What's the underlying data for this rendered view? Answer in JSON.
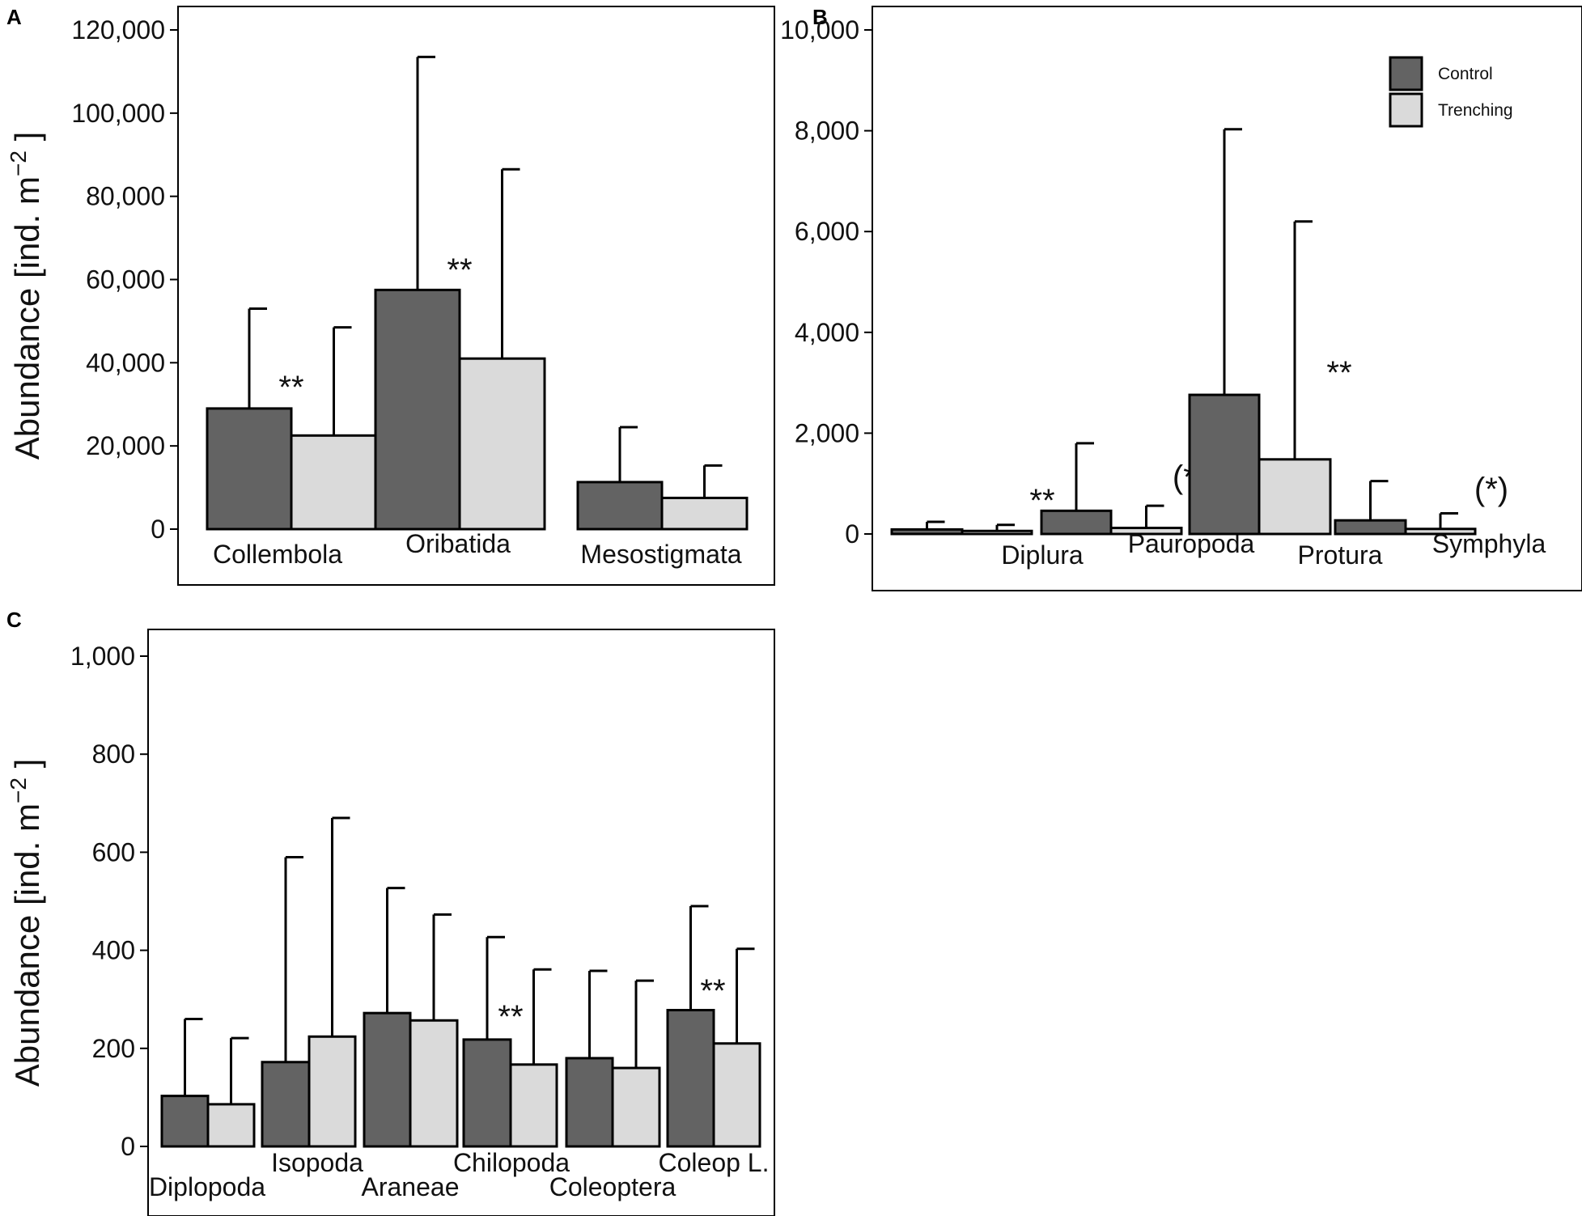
{
  "colors": {
    "control": "#636363",
    "trenching": "#dadada",
    "stroke": "#000000"
  },
  "legend": {
    "items": [
      "Control",
      "Trenching"
    ],
    "position": "top-right of panel B"
  },
  "chart_data": [
    {
      "panel": "A",
      "type": "bar",
      "ylabel": "Abundance [ind. m",
      "ylabel_unit_exponent": "−2",
      "ylabel_close": " ]",
      "ylim": [
        -15000,
        125000
      ],
      "yticks": [
        0,
        20000,
        40000,
        60000,
        80000,
        100000,
        120000
      ],
      "ytick_labels": [
        "0",
        "20,000",
        "40,000",
        "60,000",
        "80,000",
        "100,000",
        "120,000"
      ],
      "categories": [
        "Collembola",
        "Oribatida",
        "Mesostigmata"
      ],
      "series": [
        {
          "name": "Control",
          "values": [
            29000,
            57500,
            11300
          ],
          "err_upper": [
            53000,
            113500,
            24500
          ]
        },
        {
          "name": "Trenching",
          "values": [
            22500,
            41000,
            7500
          ],
          "err_upper": [
            48500,
            86500,
            15300
          ]
        }
      ],
      "significance": [
        "**",
        "**",
        ""
      ]
    },
    {
      "panel": "B",
      "type": "bar",
      "ylim": [
        -1000,
        10400
      ],
      "yticks": [
        0,
        2000,
        4000,
        6000,
        8000,
        10000
      ],
      "ytick_labels": [
        "0",
        "2,000",
        "4,000",
        "6,000",
        "8,000",
        "10,000"
      ],
      "categories": [
        "Diplura",
        "Pauropoda",
        "Protura",
        "Symphyla"
      ],
      "series": [
        {
          "name": "Control",
          "values": [
            90,
            460,
            2760,
            270
          ],
          "err_upper": [
            240,
            1800,
            8030,
            1050
          ]
        },
        {
          "name": "Trenching",
          "values": [
            60,
            120,
            1480,
            100
          ],
          "err_upper": [
            180,
            560,
            6200,
            410
          ]
        }
      ],
      "significance": [
        "**",
        "(*)",
        "**",
        "(*)"
      ]
    },
    {
      "panel": "C",
      "type": "bar",
      "ylabel": "Abundance [ind. m",
      "ylabel_unit_exponent": "−2",
      "ylabel_close": " ]",
      "ylim": [
        -125,
        1060
      ],
      "yticks": [
        0,
        200,
        400,
        600,
        800,
        1000
      ],
      "ytick_labels": [
        "0",
        "200",
        "400",
        "600",
        "800",
        "1,000"
      ],
      "categories": [
        "Diplopoda",
        "Isopoda",
        "Araneae",
        "Chilopoda",
        "Coleoptera",
        "Coleop L."
      ],
      "series": [
        {
          "name": "Control",
          "values": [
            103,
            172,
            272,
            218,
            180,
            278
          ],
          "err_upper": [
            260,
            590,
            527,
            427,
            358,
            490
          ]
        },
        {
          "name": "Trenching",
          "values": [
            86,
            224,
            257,
            167,
            160,
            210
          ],
          "err_upper": [
            221,
            670,
            473,
            361,
            338,
            403
          ]
        }
      ],
      "significance": [
        "",
        "",
        "",
        "**",
        "",
        "**"
      ]
    }
  ]
}
